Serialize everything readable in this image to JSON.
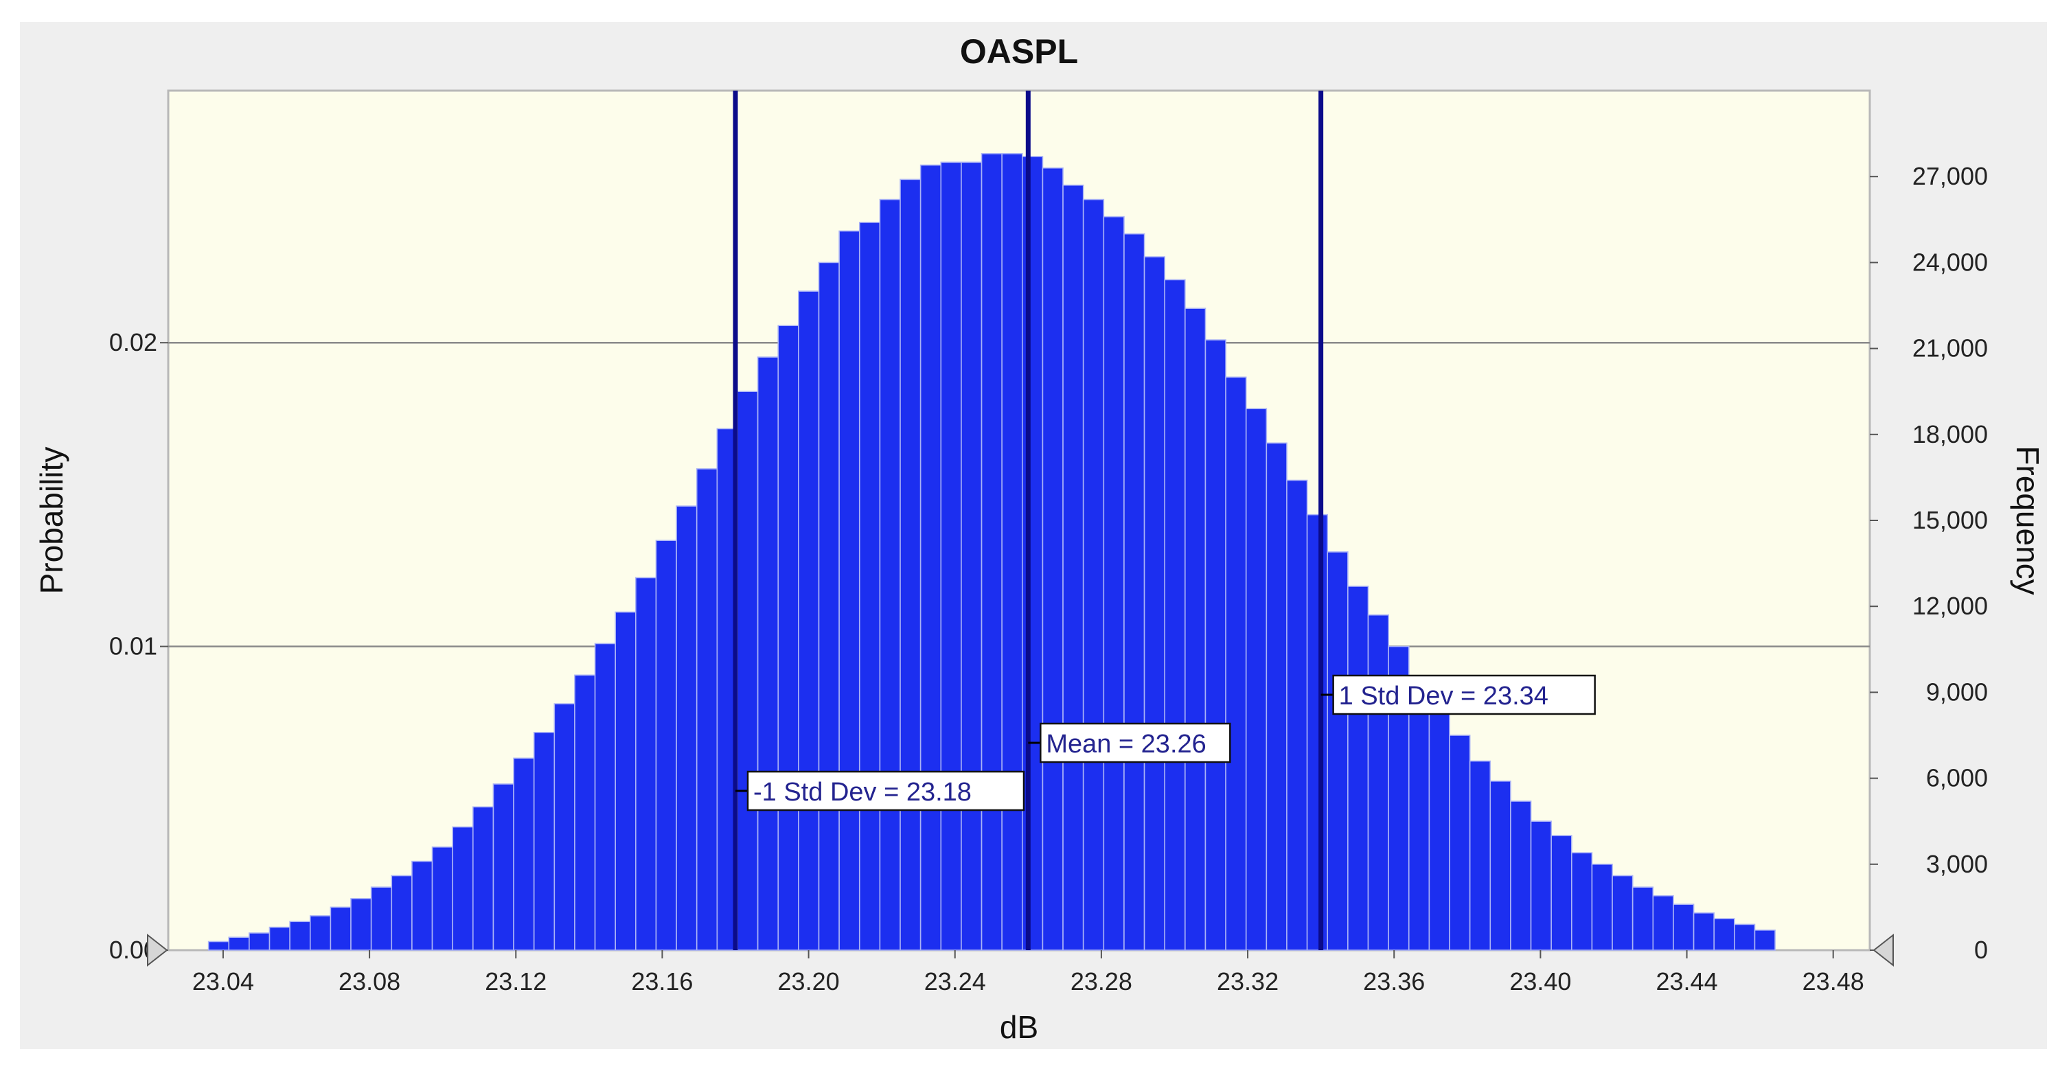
{
  "chart_data": {
    "type": "bar",
    "title": "OASPL",
    "xlabel": "dB",
    "ylabel_left": "Probability",
    "ylabel_right": "Frequency",
    "bin_start": 23.036,
    "bin_width": 0.00556,
    "xlim": [
      23.025,
      23.49
    ],
    "ylim_left": [
      0,
      0.0283
    ],
    "ylim_right": [
      0,
      30000
    ],
    "x_ticks": [
      "23.04",
      "23.08",
      "23.12",
      "23.16",
      "23.20",
      "23.24",
      "23.28",
      "23.32",
      "23.36",
      "23.40",
      "23.44",
      "23.48"
    ],
    "x_tick_values": [
      23.04,
      23.08,
      23.12,
      23.16,
      23.2,
      23.24,
      23.28,
      23.32,
      23.36,
      23.4,
      23.44,
      23.48
    ],
    "y_left_ticks": [
      "0.00",
      "0.01",
      "0.02"
    ],
    "y_left_tick_values": [
      0,
      0.01,
      0.02
    ],
    "y_right_ticks": [
      "0",
      "3,000",
      "6,000",
      "9,000",
      "12,000",
      "15,000",
      "18,000",
      "21,000",
      "24,000",
      "27,000"
    ],
    "y_right_tick_values": [
      0,
      3000,
      6000,
      9000,
      12000,
      15000,
      18000,
      21000,
      24000,
      27000
    ],
    "grid": "horizontal at left-axis major ticks",
    "series": [
      {
        "color": "#1c2ff0",
        "frequency": [
          300,
          450,
          600,
          800,
          1000,
          1200,
          1500,
          1800,
          2200,
          2600,
          3100,
          3600,
          4300,
          5000,
          5800,
          6700,
          7600,
          8600,
          9600,
          10700,
          11800,
          13000,
          14300,
          15500,
          16800,
          18200,
          19500,
          20700,
          21800,
          23000,
          24000,
          25100,
          25400,
          26200,
          26900,
          27400,
          27500,
          27500,
          27800,
          27800,
          27700,
          27300,
          26700,
          26200,
          25600,
          25000,
          24200,
          23400,
          22400,
          21300,
          20000,
          18900,
          17700,
          16400,
          15200,
          13900,
          12700,
          11700,
          10600,
          9500,
          8500,
          7500,
          6600,
          5900,
          5200,
          4500,
          4000,
          3400,
          3000,
          2600,
          2200,
          1900,
          1600,
          1300,
          1100,
          900,
          700
        ]
      }
    ],
    "annotations": [
      {
        "label": "-1 Std Dev = 23.18",
        "x": 23.18
      },
      {
        "label": "Mean = 23.26",
        "x": 23.26
      },
      {
        "label": "1 Std Dev = 23.34",
        "x": 23.34
      }
    ],
    "colors": {
      "background": "#efefef",
      "plot_background": "#fdfdeb",
      "bar_fill": "#1c2ff0",
      "bar_edge": "#aab3f6",
      "marker_line": "#0b0b8a",
      "grid": "#8a8a8a",
      "annotation_text": "#23238f"
    }
  }
}
